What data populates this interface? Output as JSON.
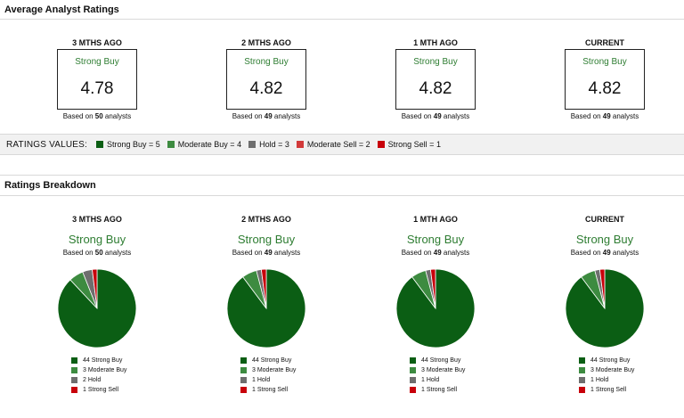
{
  "avg_section": {
    "title": "Average Analyst Ratings"
  },
  "breakdown_section": {
    "title": "Ratings Breakdown"
  },
  "colors": {
    "strong_buy": "#0b5e14",
    "moderate_buy": "#3d8b40",
    "hold": "#6e6e6e",
    "moderate_sell": "#d23a3a",
    "strong_sell": "#c8000a",
    "label_green": "#2e7d32"
  },
  "basis_prefix": "Based on",
  "basis_suffix": "analysts",
  "periods": [
    {
      "name": "3 MTHS AGO",
      "label": "Strong Buy",
      "score": "4.78",
      "analysts": "50",
      "legend": [
        "44 Strong Buy",
        "3 Moderate Buy",
        "2 Hold",
        "1 Strong Sell"
      ]
    },
    {
      "name": "2 MTHS AGO",
      "label": "Strong Buy",
      "score": "4.82",
      "analysts": "49",
      "legend": [
        "44 Strong Buy",
        "3 Moderate Buy",
        "1 Hold",
        "1 Strong Sell"
      ]
    },
    {
      "name": "1 MTH AGO",
      "label": "Strong Buy",
      "score": "4.82",
      "analysts": "49",
      "legend": [
        "44 Strong Buy",
        "3 Moderate Buy",
        "1 Hold",
        "1 Strong Sell"
      ]
    },
    {
      "name": "CURRENT",
      "label": "Strong Buy",
      "score": "4.82",
      "analysts": "49",
      "legend": [
        "44 Strong Buy",
        "3 Moderate Buy",
        "1 Hold",
        "1 Strong Sell"
      ]
    }
  ],
  "ratings_values": {
    "title": "RATINGS VALUES:",
    "items": [
      {
        "label": "Strong Buy = 5",
        "color": "#0b5e14"
      },
      {
        "label": "Moderate Buy = 4",
        "color": "#3d8b40"
      },
      {
        "label": "Hold = 3",
        "color": "#6e6e6e"
      },
      {
        "label": "Moderate Sell = 2",
        "color": "#d23a3a"
      },
      {
        "label": "Strong Sell = 1",
        "color": "#c8000a"
      }
    ]
  },
  "chart_data": [
    {
      "type": "pie",
      "title": "3 MTHS AGO",
      "categories": [
        "Strong Buy",
        "Moderate Buy",
        "Hold",
        "Strong Sell"
      ],
      "values": [
        44,
        3,
        2,
        1
      ],
      "colors": [
        "#0b5e14",
        "#3d8b40",
        "#6e6e6e",
        "#c8000a"
      ]
    },
    {
      "type": "pie",
      "title": "2 MTHS AGO",
      "categories": [
        "Strong Buy",
        "Moderate Buy",
        "Hold",
        "Strong Sell"
      ],
      "values": [
        44,
        3,
        1,
        1
      ],
      "colors": [
        "#0b5e14",
        "#3d8b40",
        "#6e6e6e",
        "#c8000a"
      ]
    },
    {
      "type": "pie",
      "title": "1 MTH AGO",
      "categories": [
        "Strong Buy",
        "Moderate Buy",
        "Hold",
        "Strong Sell"
      ],
      "values": [
        44,
        3,
        1,
        1
      ],
      "colors": [
        "#0b5e14",
        "#3d8b40",
        "#6e6e6e",
        "#c8000a"
      ]
    },
    {
      "type": "pie",
      "title": "CURRENT",
      "categories": [
        "Strong Buy",
        "Moderate Buy",
        "Hold",
        "Strong Sell"
      ],
      "values": [
        44,
        3,
        1,
        1
      ],
      "colors": [
        "#0b5e14",
        "#3d8b40",
        "#6e6e6e",
        "#c8000a"
      ]
    }
  ]
}
